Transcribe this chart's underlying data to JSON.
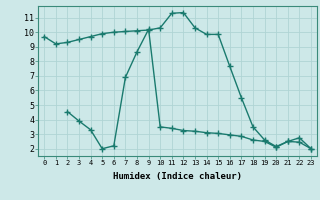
{
  "line1_x": [
    0,
    1,
    2,
    3,
    4,
    5,
    6,
    7,
    8,
    9,
    10,
    11,
    12,
    13,
    14,
    15,
    16,
    17,
    18,
    19,
    20,
    21,
    22,
    23
  ],
  "line1_y": [
    9.7,
    9.2,
    9.3,
    9.5,
    9.7,
    9.9,
    10.0,
    10.05,
    10.1,
    10.15,
    10.3,
    11.3,
    11.35,
    10.3,
    9.85,
    9.85,
    7.65,
    5.5,
    3.5,
    2.6,
    2.15,
    2.5,
    2.75,
    2.0
  ],
  "line2_x": [
    2,
    3,
    4,
    5,
    6,
    7,
    8,
    9,
    10,
    11,
    12,
    13,
    14,
    15,
    16,
    17,
    18,
    19,
    20,
    21,
    22,
    23
  ],
  "line2_y": [
    4.55,
    3.9,
    3.3,
    2.0,
    2.2,
    6.9,
    8.65,
    10.2,
    3.5,
    3.4,
    3.25,
    3.2,
    3.1,
    3.05,
    2.95,
    2.85,
    2.6,
    2.5,
    2.1,
    2.5,
    2.45,
    2.0
  ],
  "color": "#1a7a6e",
  "bg_color": "#cde8e8",
  "grid_color": "#b0d4d4",
  "xlabel": "Humidex (Indice chaleur)",
  "xlim": [
    -0.5,
    23.5
  ],
  "ylim": [
    1.5,
    11.8
  ],
  "yticks": [
    2,
    3,
    4,
    5,
    6,
    7,
    8,
    9,
    10,
    11
  ],
  "xticks": [
    0,
    1,
    2,
    3,
    4,
    5,
    6,
    7,
    8,
    9,
    10,
    11,
    12,
    13,
    14,
    15,
    16,
    17,
    18,
    19,
    20,
    21,
    22,
    23
  ],
  "marker": "+",
  "markersize": 4,
  "linewidth": 1.0
}
